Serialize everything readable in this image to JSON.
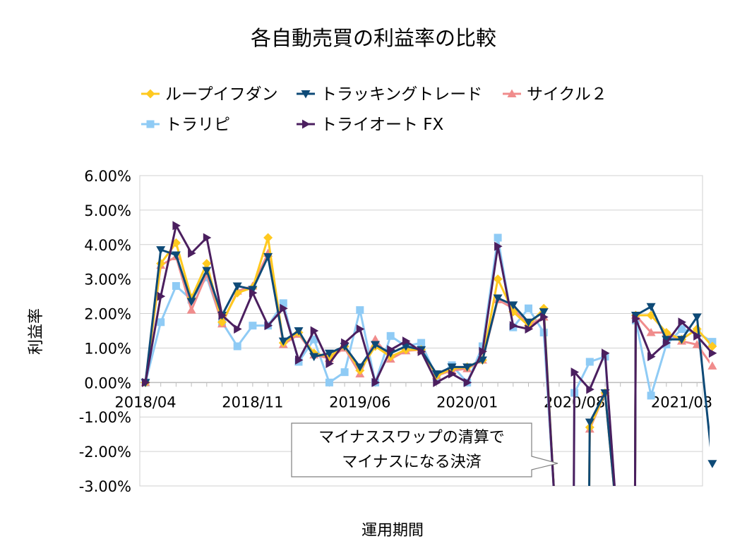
{
  "chart_data": {
    "type": "line",
    "title": "各自動売買の利益率の比較",
    "xlabel": "運用期間",
    "ylabel": "利益率",
    "ylim": [
      -0.03,
      0.06
    ],
    "ytick_labels": [
      "6.00%",
      "5.00%",
      "4.00%",
      "3.00%",
      "2.00%",
      "1.00%",
      "0.00%",
      "-1.00%",
      "-2.00%",
      "-3.00%"
    ],
    "x_tick_labels": [
      "2018/04",
      "2018/11",
      "2019/06",
      "2020/01",
      "2020/08",
      "2021/03"
    ],
    "months": 37,
    "legend_position": "top",
    "annotation": {
      "line1": "マイナススワップの清算で",
      "line2": "マイナスになる決済"
    },
    "series": [
      {
        "name": "ループイフダン",
        "color": "#FFC91F",
        "marker": "diamond",
        "values": [
          0,
          0.0345,
          0.0405,
          0.0245,
          0.0345,
          0.0175,
          0.026,
          0.0275,
          0.042,
          0.0115,
          0.0145,
          0.0085,
          0.0075,
          0.0105,
          0.0035,
          0.0105,
          0.0075,
          0.0095,
          0.0095,
          0.002,
          0.004,
          0.0045,
          0.0065,
          0.03,
          0.0205,
          0.0165,
          0.0215,
          null,
          null,
          -0.013,
          -0.003,
          null,
          0.0195,
          0.0195,
          0.0145,
          0.0125,
          0.0155,
          0.0105
        ]
      },
      {
        "name": "トラッキングトレード",
        "color": "#0E4A77",
        "marker": "triangle-down",
        "values": [
          0,
          0.0385,
          0.037,
          0.0235,
          0.0325,
          0.0195,
          0.028,
          0.027,
          0.0365,
          0.012,
          0.015,
          0.0075,
          0.0085,
          0.0105,
          0.0045,
          0.011,
          0.0085,
          0.0105,
          0.0095,
          0.0025,
          0.0045,
          0.0045,
          0.0065,
          0.0245,
          0.0225,
          0.0175,
          0.0205,
          null,
          null,
          -0.0115,
          -0.003,
          null,
          0.0195,
          0.022,
          0.0125,
          0.0125,
          0.019,
          -0.0235
        ]
      },
      {
        "name": "サイクル２",
        "color": "#F08C8C",
        "marker": "triangle-up",
        "values": [
          0,
          0.034,
          0.0365,
          0.021,
          0.0315,
          0.017,
          0.0265,
          0.028,
          0.0375,
          0.011,
          0.014,
          0.008,
          0.007,
          0.01,
          0.0025,
          0.0125,
          0.0068,
          0.0092,
          0.0095,
          0.002,
          0.0035,
          0.004,
          0.0065,
          0.024,
          0.0215,
          0.0165,
          0.019,
          null,
          null,
          -0.0135,
          -0.003,
          null,
          0.0195,
          0.0145,
          0.0145,
          0.012,
          0.011,
          0.0048
        ]
      },
      {
        "name": "トラリピ",
        "color": "#8FCBF5",
        "marker": "square",
        "values": [
          0,
          0.0175,
          0.028,
          0.024,
          0.0305,
          0.0175,
          0.0105,
          0.0165,
          0.0165,
          0.023,
          0.006,
          0.0125,
          0,
          0.003,
          0.021,
          0,
          0.0135,
          0.0105,
          0.0115,
          0.0015,
          0.005,
          0,
          0.0105,
          0.042,
          0.016,
          0.0215,
          0.0145,
          null,
          -0.003,
          0.006,
          0.0075,
          null,
          0.018,
          -0.0038,
          0.011,
          0.0155,
          0.0145,
          0.0118
        ]
      },
      {
        "name": "トライオート FX",
        "color": "#4B1F5F",
        "marker": "triangle-right",
        "values": [
          0,
          0.025,
          0.0455,
          0.0375,
          0.042,
          0.0195,
          0.0155,
          0.026,
          0.0165,
          0.0215,
          0.0065,
          0.015,
          0.0055,
          0.0115,
          0.0155,
          0,
          0.0095,
          0.012,
          0.009,
          0,
          0.0025,
          0,
          0.009,
          0.0395,
          0.0165,
          0.0155,
          0.019,
          null,
          0.003,
          -0.002,
          0.0085,
          null,
          0.0185,
          0.0075,
          0.0115,
          0.0175,
          0.0135,
          0.0085
        ]
      }
    ]
  }
}
